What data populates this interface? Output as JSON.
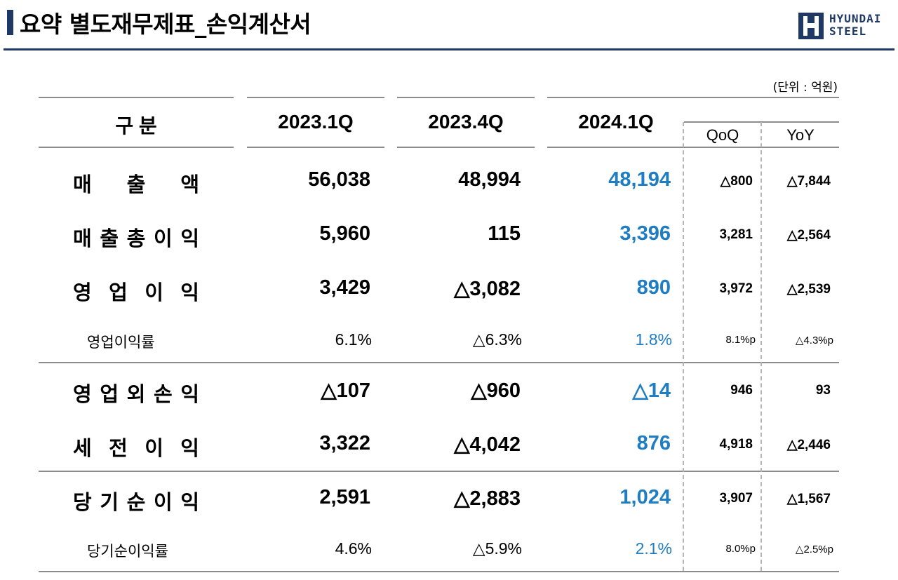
{
  "header": {
    "title": "요약 별도재무제표_손익계산서",
    "logo_line1": "HYUNDAI",
    "logo_line2": "STEEL",
    "brand_color": "#1f3864"
  },
  "unit_note": "(단위 : 억원)",
  "table": {
    "columns": [
      "구 분",
      "2023.1Q",
      "2023.4Q",
      "2024.1Q",
      "QoQ",
      "YoY"
    ],
    "highlight_color": "#1f7dc4",
    "rows": [
      {
        "label": "매출액",
        "values": [
          "56,038",
          "48,994",
          "48,194",
          "△800",
          "△7,844"
        ]
      },
      {
        "label": "매출총이익",
        "values": [
          "5,960",
          "115",
          "3,396",
          "3,281",
          "△2,564"
        ]
      },
      {
        "label": "영업이익",
        "values": [
          "3,429",
          "△3,082",
          "890",
          "3,972",
          "△2,539"
        ]
      },
      {
        "label": "영업이익률",
        "values": [
          "6.1%",
          "△6.3%",
          "1.8%",
          "8.1%p",
          "△4.3%p"
        ]
      },
      {
        "label": "영업외손익",
        "values": [
          "△107",
          "△960",
          "△14",
          "946",
          "93"
        ]
      },
      {
        "label": "세전이익",
        "values": [
          "3,322",
          "△4,042",
          "876",
          "4,918",
          "△2,446"
        ]
      },
      {
        "label": "당기순이익",
        "values": [
          "2,591",
          "△2,883",
          "1,024",
          "3,907",
          "△1,567"
        ]
      },
      {
        "label": "당기순이익률",
        "values": [
          "4.6%",
          "△5.9%",
          "2.1%",
          "8.0%p",
          "△2.5%p"
        ]
      }
    ]
  }
}
